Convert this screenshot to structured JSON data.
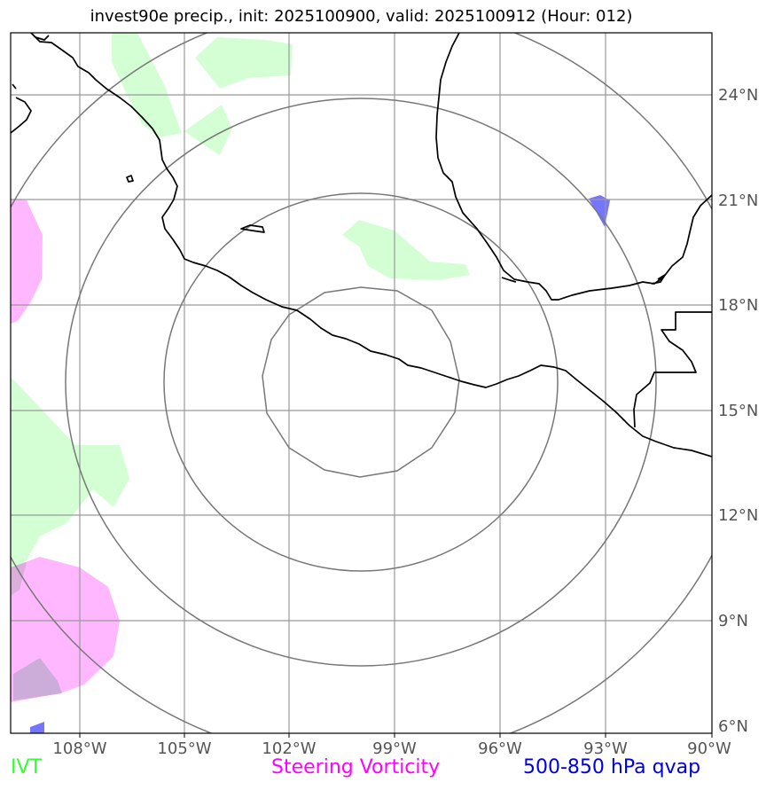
{
  "title": "invest90e precip., init: 2025100900, valid: 2025100912 (Hour: 012)",
  "map": {
    "lon_labels": [
      "108°W",
      "105°W",
      "102°W",
      "99°W",
      "96°W",
      "93°W",
      "90°W"
    ],
    "lat_labels": [
      "24°N",
      "21°N",
      "18°N",
      "15°N",
      "12°N",
      "9°N",
      "6°N"
    ],
    "center": "100°W, 15.5°N",
    "range_rings": 4,
    "colors": {
      "ivt": "#ccffcc",
      "steering_vorticity": "#ffaaff",
      "qvap": "#6666ff",
      "coast": "#000000",
      "grid": "#999999",
      "rings": "#777777"
    }
  },
  "legend": {
    "ivt": {
      "label": "IVT",
      "color": "#33ff33"
    },
    "vorticity": {
      "label": "Steering Vorticity",
      "color": "#ff00ff"
    },
    "qvap": {
      "label": "500-850 hPa qvap",
      "color": "#0000dd"
    }
  }
}
